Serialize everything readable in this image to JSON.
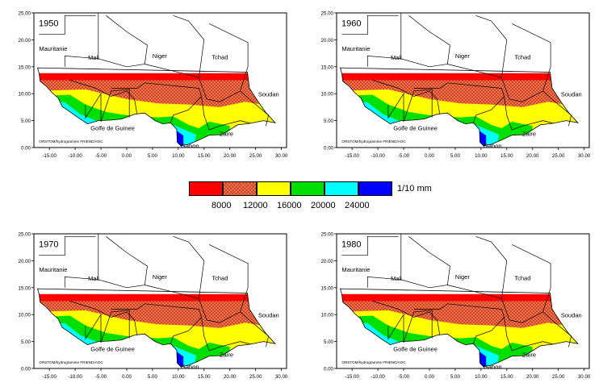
{
  "panels": [
    {
      "year": "1950",
      "rain_north_limit_lat": 13.8
    },
    {
      "year": "1960",
      "rain_north_limit_lat": 13.8
    },
    {
      "year": "1970",
      "rain_north_limit_lat": 13.8
    },
    {
      "year": "1980",
      "rain_north_limit_lat": 13.8
    }
  ],
  "axes": {
    "y_ticks": [
      "0.00",
      "5.00",
      "10.00",
      "15.00",
      "20.00",
      "25.00"
    ],
    "x_ticks": [
      "-15.00",
      "-10.00",
      "-5.00",
      "0.00",
      "5.00",
      "10.00",
      "15.00",
      "20.00",
      "25.00",
      "30.00"
    ],
    "xlim": [
      -18,
      31
    ],
    "ylim": [
      0,
      25
    ]
  },
  "labels": {
    "mauritanie": "Mauritanie",
    "mali": "Mali",
    "niger": "Niger",
    "tchad": "Tchad",
    "soudan": "Soudan",
    "golfe": "Golfe de Guinee",
    "zaire": "Zaire",
    "gabon": "Gabon",
    "credit": "ORSTOM/hydrogramme FRIEND/AOC"
  },
  "legend": {
    "unit": "1/10 mm",
    "values": [
      "8000",
      "12000",
      "16000",
      "20000",
      "24000"
    ],
    "colors": [
      "#ff0000",
      "#f07a50",
      "#ffff00",
      "#00e000",
      "#00ffff",
      "#0000ff"
    ],
    "pattern_index": 1
  },
  "colors": {
    "red": "#ff0000",
    "orange_pattern": "#f07a50",
    "yellow": "#ffff00",
    "green": "#00e000",
    "cyan": "#00ffff",
    "blue": "#0000ff",
    "border": "#000000"
  }
}
